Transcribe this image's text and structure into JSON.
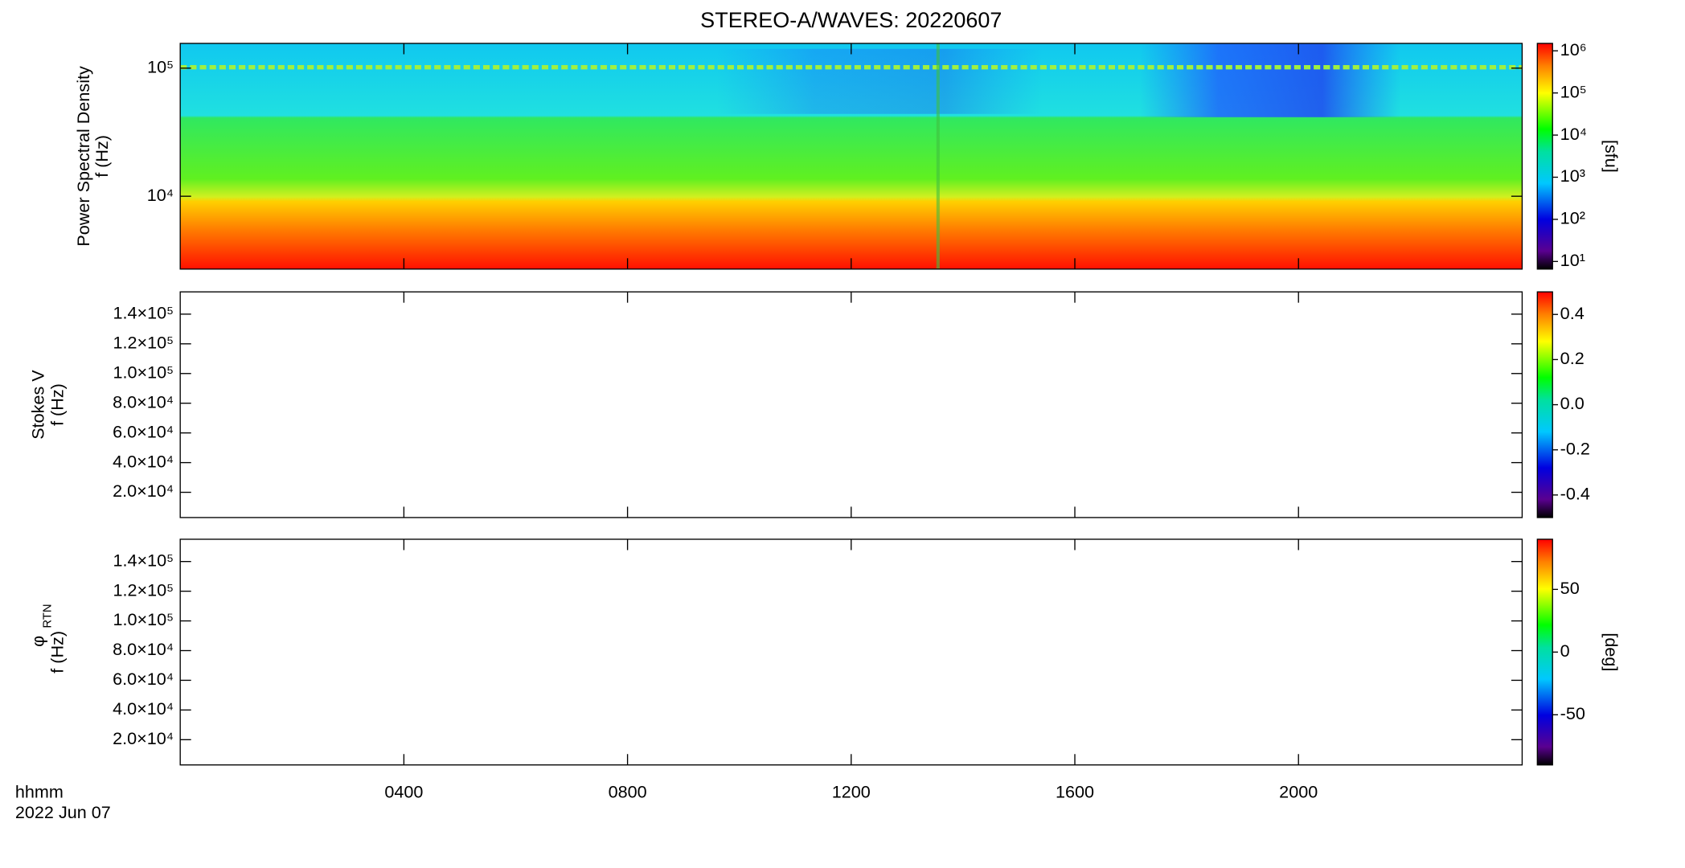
{
  "chart_data": [
    {
      "type": "spectrogram",
      "title": "STEREO-A/WAVES: 20220607",
      "ylabel": "Power Spectral Density",
      "ylabel_unit": "f (Hz)",
      "ylog": true,
      "ylim": [
        2700,
        156000
      ],
      "yticks": [
        {
          "value": 10000,
          "label": "10⁴"
        },
        {
          "value": 100000,
          "label": "10⁵"
        }
      ],
      "xlim": [
        0,
        24
      ],
      "xticks": [
        4,
        8,
        12,
        16,
        20
      ],
      "colorbar": {
        "label": "[sfu]",
        "log": true,
        "lim": [
          6.6,
          1500000
        ],
        "ticks": [
          {
            "value": 10,
            "label": "10¹"
          },
          {
            "value": 100,
            "label": "10²"
          },
          {
            "value": 1000,
            "label": "10³"
          },
          {
            "value": 10000,
            "label": "10⁴"
          },
          {
            "value": 100000,
            "label": "10⁵"
          },
          {
            "value": 1000000,
            "label": "10⁶"
          }
        ]
      }
    },
    {
      "type": "spectrogram",
      "ylabel": "Stokes V",
      "ylabel_unit": "f (Hz)",
      "ylog": false,
      "ylim": [
        3000,
        155000
      ],
      "yticks": [
        {
          "value": 20000,
          "label": "2.0×10⁴"
        },
        {
          "value": 40000,
          "label": "4.0×10⁴"
        },
        {
          "value": 60000,
          "label": "6.0×10⁴"
        },
        {
          "value": 80000,
          "label": "8.0×10⁴"
        },
        {
          "value": 100000,
          "label": "1.0×10⁵"
        },
        {
          "value": 120000,
          "label": "1.2×10⁵"
        },
        {
          "value": 140000,
          "label": "1.4×10⁵"
        }
      ],
      "xlim": [
        0,
        24
      ],
      "xticks": [
        4,
        8,
        12,
        16,
        20
      ],
      "colorbar": {
        "log": false,
        "lim": [
          -0.5,
          0.5
        ],
        "ticks": [
          -0.4,
          -0.2,
          {
            "value": 0,
            "label": "0.0"
          },
          0.2,
          0.4
        ]
      }
    },
    {
      "type": "spectrogram",
      "ylabel_symbol": "φ",
      "ylabel_subscript": "RTN",
      "ylabel_unit": "f (Hz)",
      "ylog": false,
      "ylim": [
        3000,
        155000
      ],
      "yticks": [
        {
          "value": 20000,
          "label": "2.0×10⁴"
        },
        {
          "value": 40000,
          "label": "4.0×10⁴"
        },
        {
          "value": 60000,
          "label": "6.0×10⁴"
        },
        {
          "value": 80000,
          "label": "8.0×10⁴"
        },
        {
          "value": 100000,
          "label": "1.0×10⁵"
        },
        {
          "value": 120000,
          "label": "1.2×10⁵"
        },
        {
          "value": 140000,
          "label": "1.4×10⁵"
        }
      ],
      "xlim": [
        0,
        24
      ],
      "xticks": [
        {
          "value": 4,
          "label": "0400"
        },
        {
          "value": 8,
          "label": "0800"
        },
        {
          "value": 12,
          "label": "1200"
        },
        {
          "value": 16,
          "label": "1600"
        },
        {
          "value": 20,
          "label": "2000"
        }
      ],
      "xlabel": "hhmm",
      "date": "2022 Jun 07",
      "colorbar": {
        "label": "[deg]",
        "log": false,
        "lim": [
          -90,
          90
        ],
        "ticks": [
          -50,
          0,
          50
        ]
      }
    }
  ]
}
